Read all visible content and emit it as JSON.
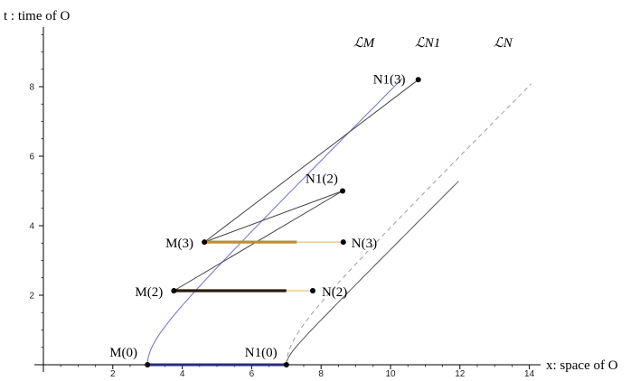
{
  "axes": {
    "x_title": "x: space of O",
    "y_title": "t : time of O",
    "x_ticks": [
      2,
      4,
      6,
      8,
      10,
      12,
      14
    ],
    "y_ticks": [
      2,
      4,
      6,
      8
    ],
    "xlim": [
      -0.2,
      14.6
    ],
    "ylim": [
      0,
      9.6
    ]
  },
  "curves": {
    "LM": {
      "label": "ℒM",
      "color": "#7b7bd1"
    },
    "LN1": {
      "label": "ℒN1",
      "color": "#555555"
    },
    "LN": {
      "label": "ℒN",
      "color": "#a99999"
    }
  },
  "points": [
    {
      "label": "M(0)",
      "x": 3.0,
      "t": 0.0
    },
    {
      "label": "N1(0)",
      "x": 7.0,
      "t": 0.0
    },
    {
      "label": "M(2)",
      "x": 3.76,
      "t": 2.13
    },
    {
      "label": "N(2)",
      "x": 7.76,
      "t": 2.13
    },
    {
      "label": "M(3)",
      "x": 4.64,
      "t": 3.53
    },
    {
      "label": "N(3)",
      "x": 8.64,
      "t": 3.53
    },
    {
      "label": "N1(2)",
      "x": 8.62,
      "t": 5.0
    },
    {
      "label": "N1(3)",
      "x": 10.8,
      "t": 8.2
    }
  ],
  "colors": {
    "axis": "#000000",
    "connector": "#444444",
    "base_segment": "#2b2b80",
    "segment_2": "#2b1a08",
    "segment_3": "#b8903a",
    "thin_orange": "#e0b060"
  }
}
